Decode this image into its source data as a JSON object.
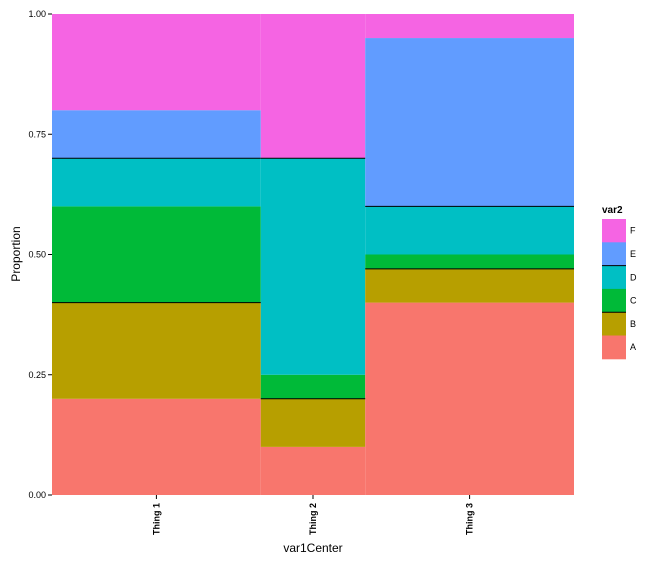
{
  "chart_data": {
    "type": "bar",
    "subtype": "stacked-variable-width",
    "xlabel": "var1Center",
    "ylabel": "Proportion",
    "ylim": [
      0,
      1
    ],
    "yticks": [
      "0.00",
      "0.25",
      "0.50",
      "0.75",
      "1.00"
    ],
    "grid": false,
    "legend": {
      "title": "var2",
      "placement": "right",
      "entries": [
        "F",
        "E",
        "D",
        "C",
        "B",
        "A"
      ]
    },
    "categories": [
      "Thing 1",
      "Thing 2",
      "Thing 3"
    ],
    "widths": [
      0.4,
      0.2,
      0.4
    ],
    "series": [
      {
        "name": "A",
        "color": "#F8766D",
        "values": [
          0.2,
          0.1,
          0.4
        ]
      },
      {
        "name": "B",
        "color": "#B79F00",
        "values": [
          0.2,
          0.1,
          0.07
        ]
      },
      {
        "name": "C",
        "color": "#00BA38",
        "values": [
          0.2,
          0.05,
          0.03
        ]
      },
      {
        "name": "D",
        "color": "#00BFC4",
        "values": [
          0.1,
          0.45,
          0.1
        ]
      },
      {
        "name": "E",
        "color": "#619CFF",
        "values": [
          0.1,
          0.0,
          0.35
        ]
      },
      {
        "name": "F",
        "color": "#F564E3",
        "values": [
          0.2,
          0.3,
          0.05
        ]
      }
    ]
  }
}
